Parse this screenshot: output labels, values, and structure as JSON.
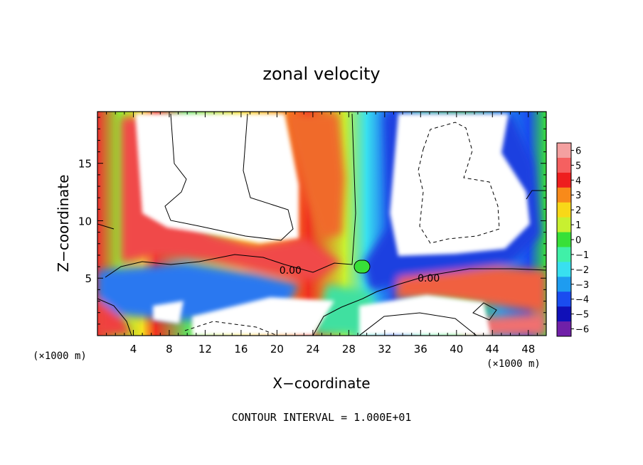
{
  "chart_data": {
    "type": "heatmap",
    "title": "zonal velocity",
    "xlabel": "X−coordinate",
    "ylabel": "Z−coordinate",
    "x_unit_left": "(×1000 m)",
    "x_unit_right": "(×1000 m)",
    "footer": "CONTOUR INTERVAL = 1.000E+01",
    "xlim": [
      0,
      50
    ],
    "ylim": [
      0,
      19.5
    ],
    "x_ticks": [
      4,
      8,
      12,
      16,
      20,
      24,
      28,
      32,
      36,
      40,
      44,
      48
    ],
    "x_tick_labels": [
      "4",
      "8",
      "12",
      "16",
      "20",
      "24",
      "28",
      "32",
      "36",
      "40",
      "44",
      "48"
    ],
    "y_ticks": [
      5,
      10,
      15
    ],
    "y_tick_labels": [
      "5",
      "10",
      "15"
    ],
    "contour_labels": [
      {
        "text": "0.00",
        "x": 21.5,
        "z": 5.7
      },
      {
        "text": "0.00",
        "x": 36.9,
        "z": 5.0
      }
    ],
    "colorbar": {
      "levels": [
        6,
        5,
        4,
        3,
        2,
        1,
        0,
        -1,
        -2,
        -3,
        -4,
        -5,
        -6
      ],
      "labels": [
        "6",
        "5",
        "4",
        "3",
        "2",
        "1",
        "0",
        "−1",
        "−2",
        "−3",
        "−4",
        "−5",
        "−6"
      ],
      "colors": [
        "#f4a0a0",
        "#f56060",
        "#ee1e1e",
        "#f88a1a",
        "#f8d818",
        "#c8f030",
        "#38e038",
        "#40f0a8",
        "#38e0f0",
        "#1e9cf0",
        "#1a4cf0",
        "#1010b8",
        "#7020a8"
      ]
    }
  }
}
